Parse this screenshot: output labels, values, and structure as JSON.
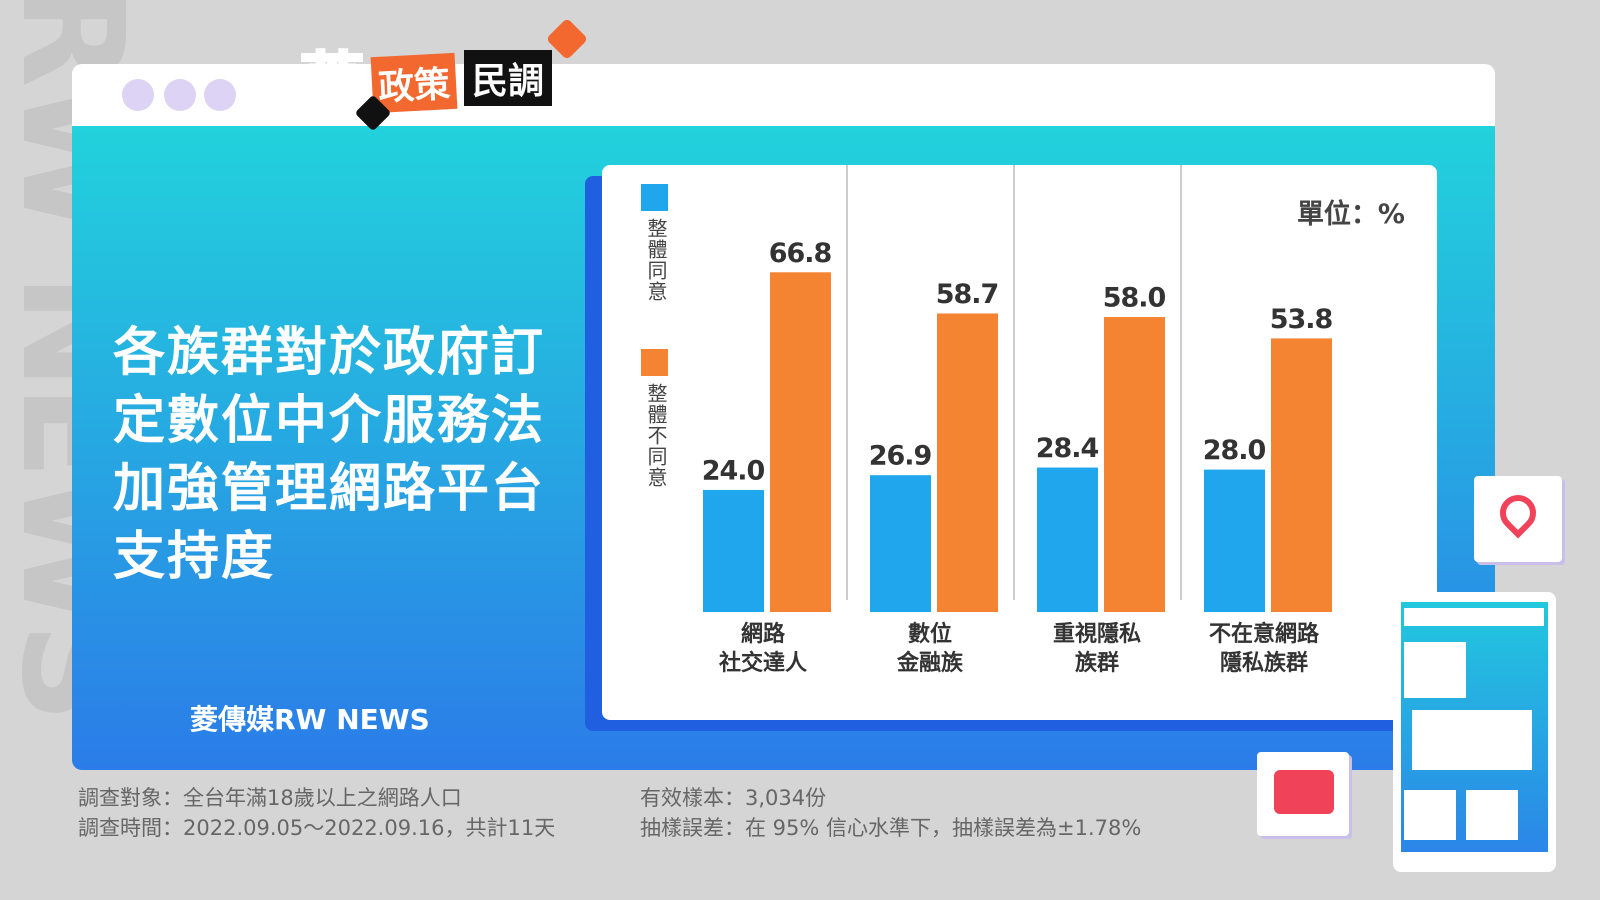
{
  "header": {
    "brand": "菱",
    "tag1": "政策",
    "tag2": "民調"
  },
  "watermark": "RW NEWS",
  "title_lines": [
    "各族群對於政府訂",
    "定數位中介服務法",
    "加強管理網路平台",
    "支持度"
  ],
  "logo": "菱傳媒RW NEWS",
  "notes": [
    "調查對象：全台年滿18歲以上之網路人口",
    "調查時間：2022.09.05～2022.09.16，共計11天",
    "有效樣本：3,034份",
    "抽樣誤差：在 95% 信心水準下，抽樣誤差為±1.78%"
  ],
  "chart_data": {
    "type": "bar",
    "unit": "單位：%",
    "categories": [
      "網路\n社交達人",
      "數位\n金融族",
      "重視隱私\n族群",
      "不在意網路\n隱私族群"
    ],
    "series": [
      {
        "name": "整體同意",
        "color": "#1fa6ec",
        "values": [
          24.0,
          26.9,
          28.4,
          28.0
        ],
        "value_labels": [
          "24.0",
          "26.9",
          "28.4",
          "28.0"
        ]
      },
      {
        "name": "整體不同意",
        "color": "#f58432",
        "values": [
          66.8,
          58.7,
          58.0,
          53.8
        ],
        "value_labels": [
          "66.8",
          "58.7",
          "58.0",
          "53.8"
        ]
      }
    ],
    "ylim": [
      0,
      70
    ],
    "grid": false
  }
}
